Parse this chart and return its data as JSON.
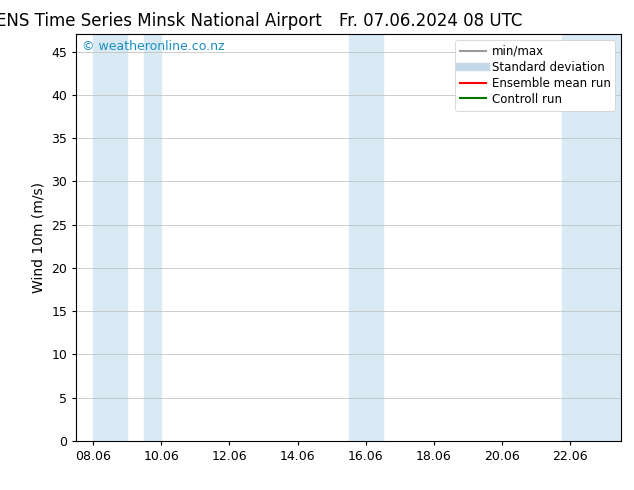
{
  "title_left": "ENS Time Series Minsk National Airport",
  "title_right": "Fr. 07.06.2024 08 UTC",
  "ylabel": "Wind 10m (m/s)",
  "ylim": [
    0,
    47
  ],
  "yticks": [
    0,
    5,
    10,
    15,
    20,
    25,
    30,
    35,
    40,
    45
  ],
  "xtick_labels": [
    "08.06",
    "10.06",
    "12.06",
    "14.06",
    "16.06",
    "18.06",
    "20.06",
    "22.06"
  ],
  "xtick_positions": [
    0,
    2,
    4,
    6,
    8,
    10,
    12,
    14
  ],
  "xlim": [
    -0.5,
    15.5
  ],
  "shaded_regions": [
    {
      "xmin": 0.0,
      "xmax": 1.0
    },
    {
      "xmin": 1.5,
      "xmax": 2.0
    },
    {
      "xmin": 7.5,
      "xmax": 8.5
    },
    {
      "xmin": 13.75,
      "xmax": 15.5
    }
  ],
  "shade_color": "#daeaf5",
  "watermark_text": "© weatheronline.co.nz",
  "watermark_color": "#1a8fc1",
  "watermark_fontsize": 9,
  "legend_entries": [
    {
      "label": "min/max",
      "color": "#999999",
      "lw": 1.5,
      "style": "solid"
    },
    {
      "label": "Standard deviation",
      "color": "#c5d8ea",
      "lw": 6,
      "style": "solid"
    },
    {
      "label": "Ensemble mean run",
      "color": "#ff0000",
      "lw": 1.5,
      "style": "solid"
    },
    {
      "label": "Controll run",
      "color": "#007700",
      "lw": 1.5,
      "style": "solid"
    }
  ],
  "bg_color": "#ffffff",
  "plot_bg_color": "#ffffff",
  "grid_color": "#bbbbbb",
  "title_fontsize": 12,
  "axis_fontsize": 10,
  "tick_fontsize": 9,
  "legend_fontsize": 8.5
}
